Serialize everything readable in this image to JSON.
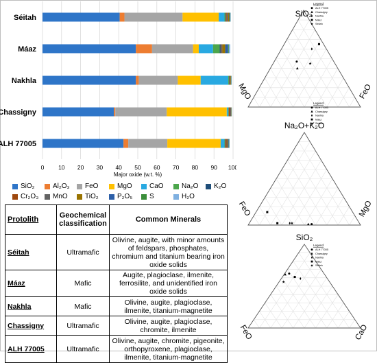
{
  "chart_data": [
    {
      "type": "bar",
      "stacked": true,
      "orientation": "horizontal",
      "categories": [
        "Séitah",
        "Máaz",
        "Nakhla",
        "Chassigny",
        "ALH 77005"
      ],
      "xlabel": "Major oxide (w.t. %)",
      "xlim": [
        0,
        100
      ],
      "xticks": [
        0,
        10,
        20,
        30,
        40,
        50,
        60,
        70,
        80,
        90,
        100
      ],
      "grid": true,
      "legend_placement": "bottom",
      "series": [
        {
          "name": "SiO2",
          "label": "SiO₂",
          "color": "#2e75c8",
          "values": [
            40.5,
            49,
            49,
            37.5,
            42.5
          ]
        },
        {
          "name": "Al2O3",
          "label": "Al₂O₃",
          "color": "#ed7d31",
          "values": [
            2.5,
            8.5,
            1.5,
            0.7,
            2.5
          ]
        },
        {
          "name": "FeO",
          "label": "FeO",
          "color": "#a5a5a5",
          "values": [
            30.5,
            21.5,
            20.5,
            27,
            20.5
          ]
        },
        {
          "name": "MgO",
          "label": "MgO",
          "color": "#ffc000",
          "values": [
            19,
            3,
            12,
            31.5,
            28
          ]
        },
        {
          "name": "CaO",
          "label": "CaO",
          "color": "#29a9e1",
          "values": [
            3,
            7.5,
            14.5,
            0.7,
            2
          ]
        },
        {
          "name": "Na2O",
          "label": "Na₂O",
          "color": "#4ca64c",
          "values": [
            0.5,
            3.5,
            0.4,
            0.3,
            0.3
          ]
        },
        {
          "name": "K2O",
          "label": "K₂O",
          "color": "#1f4e79",
          "values": [
            0.2,
            0.5,
            0.1,
            0.1,
            0.1
          ]
        },
        {
          "name": "Cr2O3",
          "label": "Cr₂O₃",
          "color": "#9e480e",
          "values": [
            0.5,
            0.3,
            0.2,
            0.7,
            0.7
          ]
        },
        {
          "name": "MnO",
          "label": "MnO",
          "color": "#636363",
          "values": [
            0.7,
            0.6,
            0.4,
            0.5,
            0.5
          ]
        },
        {
          "name": "TiO2",
          "label": "TiO₂",
          "color": "#997300",
          "values": [
            0.6,
            1.5,
            0.3,
            0.1,
            0.4
          ]
        },
        {
          "name": "P2O5",
          "label": "P₂O₅",
          "color": "#2c5fa8",
          "values": [
            0.3,
            1.5,
            0.1,
            0.1,
            0.3
          ]
        },
        {
          "name": "S",
          "label": "S",
          "color": "#3b8e3b",
          "values": [
            0.3,
            0.4,
            0.1,
            0.1,
            0.2
          ]
        },
        {
          "name": "H2O",
          "label": "H₂O",
          "color": "#7fb0e0",
          "values": [
            0.2,
            0.7,
            0.2,
            0.1,
            0.2
          ]
        }
      ]
    },
    {
      "type": "scatter",
      "ternary": true,
      "axes": {
        "top": "SiO₂",
        "left": "MgO",
        "right": "FeO"
      },
      "legend_title": "Legend",
      "legend_entries": [
        {
          "name": "ALH 77005",
          "marker": "circle"
        },
        {
          "name": "Chassigny",
          "marker": "triangle"
        },
        {
          "name": "Nakhla",
          "marker": "diamond"
        },
        {
          "name": "Máaz",
          "marker": "square"
        },
        {
          "name": "Séitah",
          "marker": "star"
        }
      ],
      "points": [
        {
          "sample": "ALH 77005",
          "marker": "circle",
          "abc": [
            47,
            33,
            20
          ]
        },
        {
          "sample": "Chassigny",
          "marker": "triangle",
          "abc": [
            40,
            36,
            24
          ]
        },
        {
          "sample": "Nakhla",
          "marker": "diamond",
          "abc": [
            60,
            13,
            27
          ]
        },
        {
          "sample": "Máaz",
          "marker": "square",
          "abc": [
            65,
            4,
            31
          ]
        },
        {
          "sample": "Séitah",
          "marker": "star",
          "abc": [
            45,
            22,
            33
          ]
        }
      ]
    },
    {
      "type": "scatter",
      "ternary": true,
      "axes": {
        "top": "Na₂O+K₂O",
        "left": "FeO",
        "right": "MgO"
      },
      "legend_title": "Legend",
      "legend_entries": [
        {
          "name": "ALH 77005",
          "marker": "circle"
        },
        {
          "name": "Chassigny",
          "marker": "triangle"
        },
        {
          "name": "Nakhla",
          "marker": "diamond"
        },
        {
          "name": "Máaz",
          "marker": "square"
        },
        {
          "name": "Séitah",
          "marker": "star"
        }
      ],
      "points": [
        {
          "sample": "ALH 77005",
          "marker": "circle",
          "abc": [
            1,
            43,
            56
          ]
        },
        {
          "sample": "Chassigny",
          "marker": "triangle",
          "abc": [
            1,
            46,
            53
          ]
        },
        {
          "sample": "Nakhla",
          "marker": "diamond",
          "abc": [
            2,
            62,
            36
          ]
        },
        {
          "sample": "Máaz",
          "marker": "square",
          "abc": [
            14,
            76,
            10
          ]
        },
        {
          "sample": "Séitah",
          "marker": "star",
          "abc": [
            2,
            60,
            38
          ]
        },
        {
          "sample": "Máaz",
          "marker": "square",
          "abc": [
            2,
            73,
            25
          ]
        }
      ]
    },
    {
      "type": "scatter",
      "ternary": true,
      "axes": {
        "top": "SiO₂",
        "left": "FeO",
        "right": "CaO"
      },
      "legend_title": "Legend",
      "legend_entries": [
        {
          "name": "ALH 77005",
          "marker": "circle"
        },
        {
          "name": "Chassigny",
          "marker": "triangle"
        },
        {
          "name": "Nakhla",
          "marker": "diamond"
        },
        {
          "name": "Máaz",
          "marker": "square"
        },
        {
          "name": "Séitah",
          "marker": "star"
        }
      ],
      "points": [
        {
          "sample": "ALH 77005",
          "marker": "circle",
          "abc": [
            65,
            31,
            4
          ]
        },
        {
          "sample": "Chassigny",
          "marker": "triangle",
          "abc": [
            64,
            35,
            1
          ]
        },
        {
          "sample": "Nakhla",
          "marker": "diamond",
          "abc": [
            59,
            24,
            17
          ]
        },
        {
          "sample": "Máaz",
          "marker": "square",
          "abc": [
            61,
            28,
            11
          ]
        },
        {
          "sample": "Séitah",
          "marker": "star",
          "abc": [
            55,
            41,
            4
          ]
        }
      ]
    }
  ],
  "table": {
    "headers": {
      "protolith": "Protolith",
      "classification": "Geochemical classification",
      "minerals": "Common Minerals"
    },
    "rows": [
      {
        "protolith": "Séitah",
        "classification": "Ultramafic",
        "minerals": "Olivine, augite, with minor amounts of feldspars, phosphates, chromium and titanium bearing iron oxide solids"
      },
      {
        "protolith": "Máaz",
        "classification": "Mafic",
        "minerals": "Augite, plagioclase, ilmenite, ferrosilite, and unidentified iron oxide solids"
      },
      {
        "protolith": "Nakhla",
        "classification": "Mafic",
        "minerals": "Olivine, augite, plagioclase, ilmenite, titanium-magnetite"
      },
      {
        "protolith": "Chassigny",
        "classification": "Ultramafic",
        "minerals": "Olivine, augite, plagioclase, chromite, ilmenite"
      },
      {
        "protolith": "ALH 77005",
        "classification": "Ultramafic",
        "minerals": "Olivine, augite, chromite, pigeonite, orthopyroxene, plagioclase, ilmenite, titanium-magnetite"
      }
    ]
  }
}
